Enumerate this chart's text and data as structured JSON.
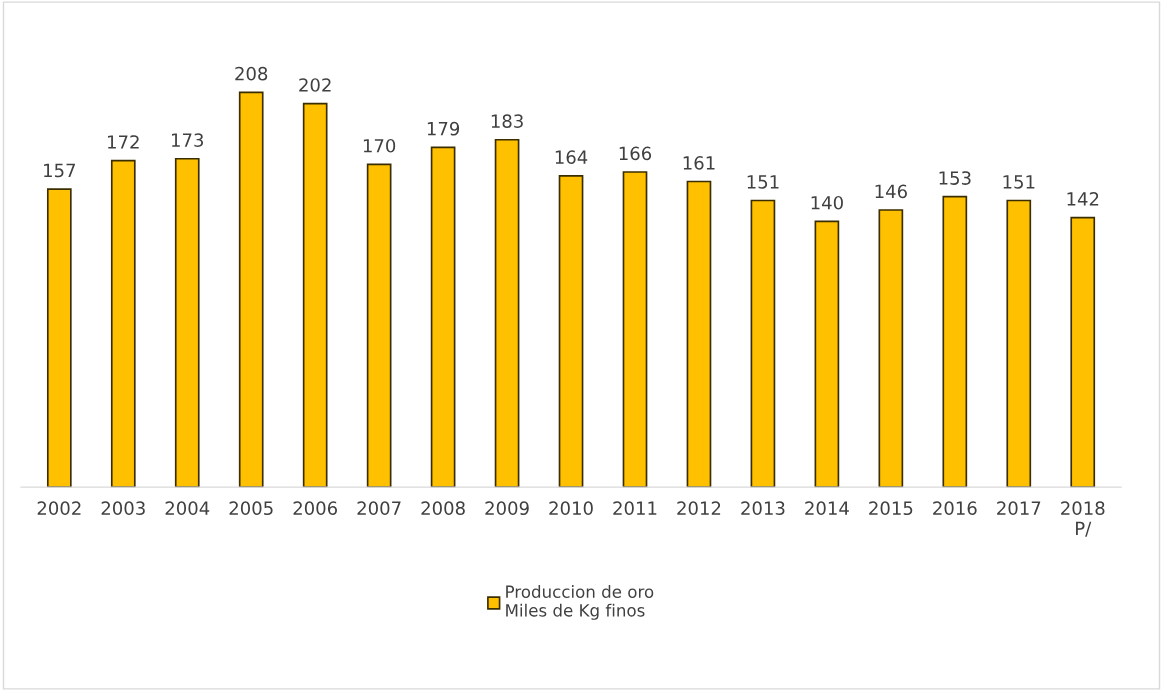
{
  "chart_data": {
    "type": "bar",
    "categories": [
      "2002",
      "2003",
      "2004",
      "2005",
      "2006",
      "2007",
      "2008",
      "2009",
      "2010",
      "2011",
      "2012",
      "2013",
      "2014",
      "2015",
      "2016",
      "2017",
      "2018\nP/"
    ],
    "series": [
      {
        "name": "Produccion de oro\nMiles de Kg finos",
        "color": "#ffc000",
        "values": [
          157,
          172,
          173,
          208,
          202,
          170,
          179,
          183,
          164,
          166,
          161,
          151,
          140,
          146,
          153,
          151,
          142
        ]
      }
    ],
    "data_labels": true,
    "grid": false,
    "legend": "bottom",
    "tick_labels": "x"
  }
}
